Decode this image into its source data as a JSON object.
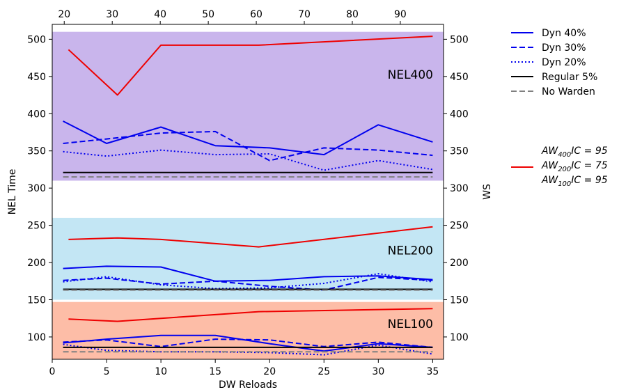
{
  "chart_data": {
    "type": "line",
    "xlabel": "DW Reloads",
    "ylabel": "NEL Time",
    "ylabel_right": "WS",
    "xlim": [
      0,
      36
    ],
    "ylim": [
      70,
      520
    ],
    "xlim_top": [
      17.5,
      99
    ],
    "x_ticks": [
      0,
      5,
      10,
      15,
      20,
      25,
      30,
      35
    ],
    "x_ticks_top": [
      20,
      30,
      40,
      50,
      60,
      70,
      80,
      90
    ],
    "y_ticks": [
      100,
      150,
      200,
      250,
      300,
      350,
      400,
      450,
      500
    ],
    "grid": false,
    "legend_position": "right-outside",
    "bands": [
      {
        "label": "NEL400",
        "y_range": [
          310,
          510
        ],
        "color": "#c9b5ec"
      },
      {
        "label": "NEL200",
        "y_range": [
          150,
          260
        ],
        "color": "#c3e6f4"
      },
      {
        "label": "NEL100",
        "y_range": [
          70,
          147
        ],
        "color": "#fdbda7"
      }
    ],
    "groups": [
      {
        "region": "NEL400",
        "series": [
          {
            "name": "Dyn 40%",
            "style": "solid",
            "color": "#0000ee",
            "x": [
              1,
              5,
              10,
              15,
              20,
              25,
              30,
              35
            ],
            "y": [
              390,
              360,
              382,
              357,
              354,
              345,
              385,
              362
            ]
          },
          {
            "name": "Dyn 30%",
            "style": "dashed",
            "color": "#0000ee",
            "x": [
              1,
              5,
              10,
              15,
              20,
              25,
              30,
              35
            ],
            "y": [
              360,
              366,
              374,
              376,
              337,
              354,
              351,
              344
            ]
          },
          {
            "name": "Dyn 20%",
            "style": "dotted",
            "color": "#0000ee",
            "x": [
              1,
              5,
              10,
              15,
              20,
              25,
              30,
              35
            ],
            "y": [
              349,
              343,
              351,
              345,
              346,
              324,
              337,
              325
            ]
          },
          {
            "name": "Regular   5%",
            "style": "solid",
            "color": "#000000",
            "x": [
              1,
              35
            ],
            "y": [
              321,
              321
            ]
          },
          {
            "name": "No Warden",
            "style": "dashed",
            "color": "#808080",
            "x": [
              1,
              35
            ],
            "y": [
              315,
              315
            ]
          },
          {
            "name": "AW400",
            "style": "solid",
            "color": "#ee0000",
            "x": [
              1.5,
              6,
              10,
              19,
              35
            ],
            "y": [
              486,
              425,
              492,
              492,
              504
            ]
          }
        ]
      },
      {
        "region": "NEL200",
        "series": [
          {
            "name": "Dyn 40%",
            "style": "solid",
            "color": "#0000ee",
            "x": [
              1,
              5,
              10,
              15,
              20,
              25,
              30,
              35
            ],
            "y": [
              192,
              195,
              194,
              175,
              176,
              181,
              182,
              177
            ]
          },
          {
            "name": "Dyn 30%",
            "style": "dashed",
            "color": "#0000ee",
            "x": [
              1,
              5,
              10,
              15,
              20,
              25,
              30,
              35
            ],
            "y": [
              176,
              179,
              171,
              175,
              168,
              163,
              180,
              176
            ]
          },
          {
            "name": "Dyn 20%",
            "style": "dotted",
            "color": "#0000ee",
            "x": [
              1,
              5,
              10,
              15,
              20,
              25,
              30,
              35
            ],
            "y": [
              174,
              181,
              170,
              165,
              166,
              172,
              185,
              174
            ]
          },
          {
            "name": "Regular   5%",
            "style": "solid",
            "color": "#000000",
            "x": [
              1,
              35
            ],
            "y": [
              164,
              164
            ]
          },
          {
            "name": "No Warden",
            "style": "dashed",
            "color": "#808080",
            "x": [
              1,
              35
            ],
            "y": [
              163,
              163
            ]
          },
          {
            "name": "AW200",
            "style": "solid",
            "color": "#ee0000",
            "x": [
              1.5,
              6,
              10,
              19,
              35
            ],
            "y": [
              231,
              233,
              231,
              221,
              248
            ]
          }
        ]
      },
      {
        "region": "NEL100",
        "series": [
          {
            "name": "Dyn 40%",
            "style": "solid",
            "color": "#0000ee",
            "x": [
              1,
              5,
              10,
              15,
              20,
              25,
              30,
              35
            ],
            "y": [
              92,
              97,
              102,
              102,
              91,
              81,
              91,
              86
            ]
          },
          {
            "name": "Dyn 30%",
            "style": "dashed",
            "color": "#0000ee",
            "x": [
              1,
              5,
              10,
              15,
              20,
              25,
              30,
              35
            ],
            "y": [
              93,
              96,
              87,
              97,
              96,
              87,
              93,
              86
            ]
          },
          {
            "name": "Dyn 20%",
            "style": "dotted",
            "color": "#0000ee",
            "x": [
              1,
              5,
              10,
              15,
              20,
              25,
              30,
              35
            ],
            "y": [
              90,
              82,
              80,
              80,
              79,
              76,
              89,
              77
            ]
          },
          {
            "name": "Regular   5%",
            "style": "solid",
            "color": "#000000",
            "x": [
              1,
              35
            ],
            "y": [
              86,
              86
            ]
          },
          {
            "name": "No Warden",
            "style": "dashed",
            "color": "#808080",
            "x": [
              1,
              35
            ],
            "y": [
              80,
              80
            ]
          },
          {
            "name": "AW100",
            "style": "solid",
            "color": "#ee0000",
            "x": [
              1.5,
              6,
              10,
              19,
              35
            ],
            "y": [
              124,
              121,
              125,
              134,
              138
            ]
          }
        ]
      }
    ],
    "legend": [
      {
        "label": "Dyn 40%",
        "style": "solid",
        "color": "#0000ee"
      },
      {
        "label": "Dyn 30%",
        "style": "dashed",
        "color": "#0000ee"
      },
      {
        "label": "Dyn 20%",
        "style": "dotted",
        "color": "#0000ee"
      },
      {
        "label": "Regular   5%",
        "style": "solid",
        "color": "#000000"
      },
      {
        "label": "No Warden",
        "style": "dashed",
        "color": "#808080"
      }
    ],
    "legend_red": {
      "color": "#ee0000",
      "lines": [
        {
          "sub": "400",
          "text": "IC = 95"
        },
        {
          "sub": "200",
          "text": "IC = 75"
        },
        {
          "sub": "100",
          "text": "IC = 95"
        }
      ],
      "prefix": "AW"
    }
  }
}
